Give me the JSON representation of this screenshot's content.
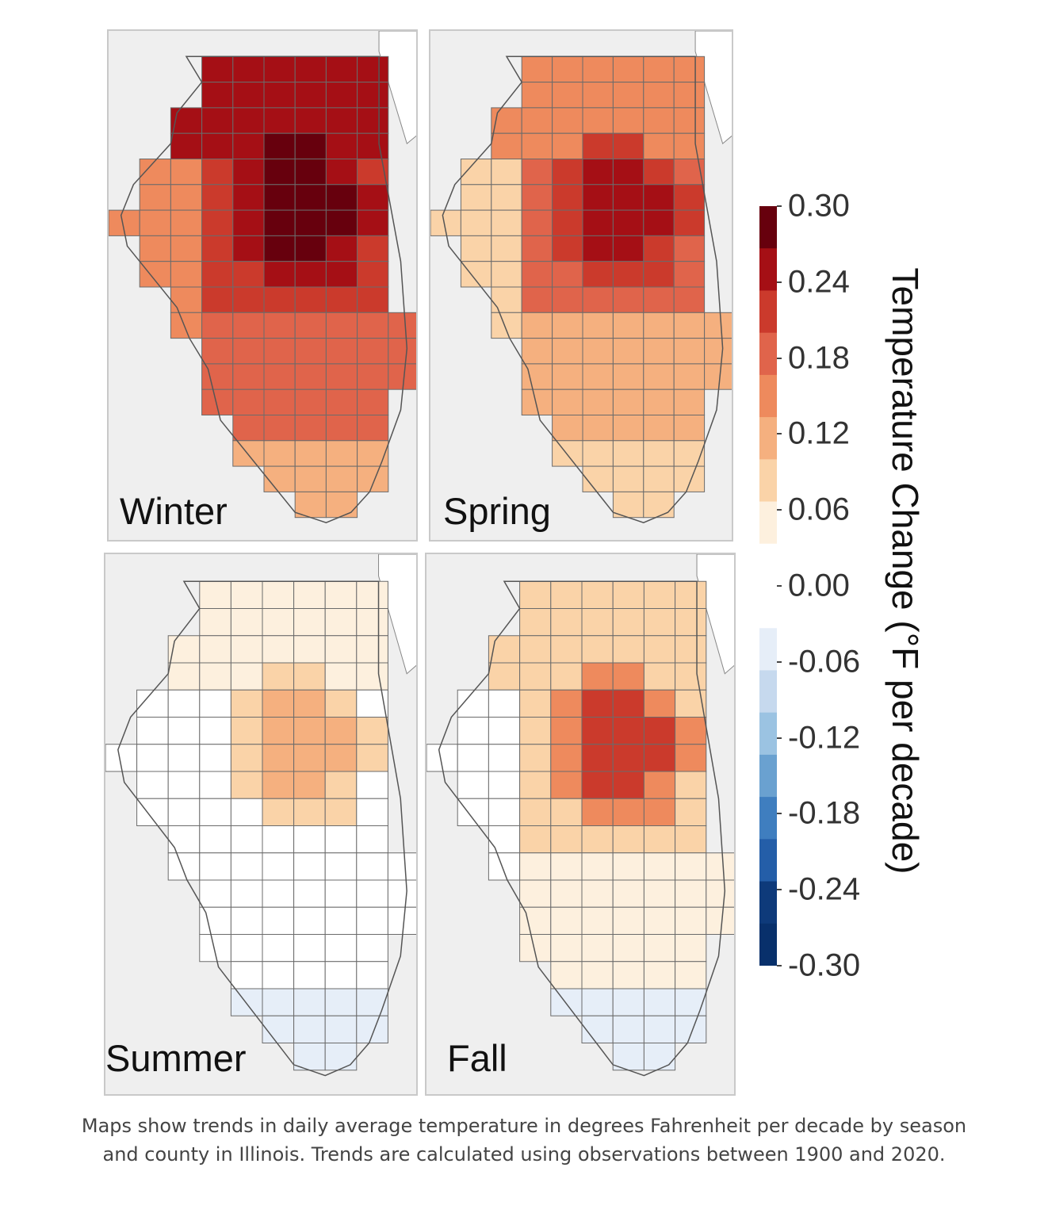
{
  "chart_data": {
    "type": "choropleth",
    "region": "Illinois counties",
    "panels": [
      {
        "season": "Winter",
        "id": "winter",
        "hotspot_value": 0.3,
        "north_value": 0.24,
        "central_value": 0.21,
        "south_value": 0.17,
        "southtip_value": 0.12,
        "west_value": 0.16
      },
      {
        "season": "Spring",
        "id": "spring",
        "hotspot_value": 0.26,
        "north_value": 0.14,
        "central_value": 0.17,
        "south_value": 0.11,
        "southtip_value": 0.07,
        "west_value": 0.08
      },
      {
        "season": "Summer",
        "id": "summer",
        "hotspot_value": 0.11,
        "north_value": 0.04,
        "central_value": 0.03,
        "south_value": 0.02,
        "southtip_value": -0.05,
        "west_value": 0.0
      },
      {
        "season": "Fall",
        "id": "fall",
        "hotspot_value": 0.2,
        "north_value": 0.1,
        "central_value": 0.08,
        "south_value": 0.04,
        "southtip_value": -0.05,
        "west_value": 0.03
      }
    ],
    "legend": {
      "title": "Temperature Change (°F per decade)",
      "ticks": [
        "0.30",
        "0.24",
        "0.18",
        "0.12",
        "0.06",
        "0.00",
        "-0.06",
        "-0.12",
        "-0.18",
        "-0.24",
        "-0.30"
      ],
      "range": [
        -0.3,
        0.3
      ],
      "colors_high_to_low": [
        "#67000d",
        "#a50f15",
        "#cb3a2c",
        "#e0644b",
        "#ee8a5d",
        "#f5b07f",
        "#fad3a8",
        "#fdf0de",
        "#ffffff",
        "#ffffff",
        "#e6eef8",
        "#c6d9ee",
        "#9bc3e2",
        "#6aa1d0",
        "#3f7ebf",
        "#245ea8",
        "#0e3a7a",
        "#08306b"
      ]
    }
  },
  "caption": "Maps show trends in daily average temperature in degrees Fahrenheit per decade by season and county in Illinois. Trends are calculated using observations between 1900 and 2020."
}
